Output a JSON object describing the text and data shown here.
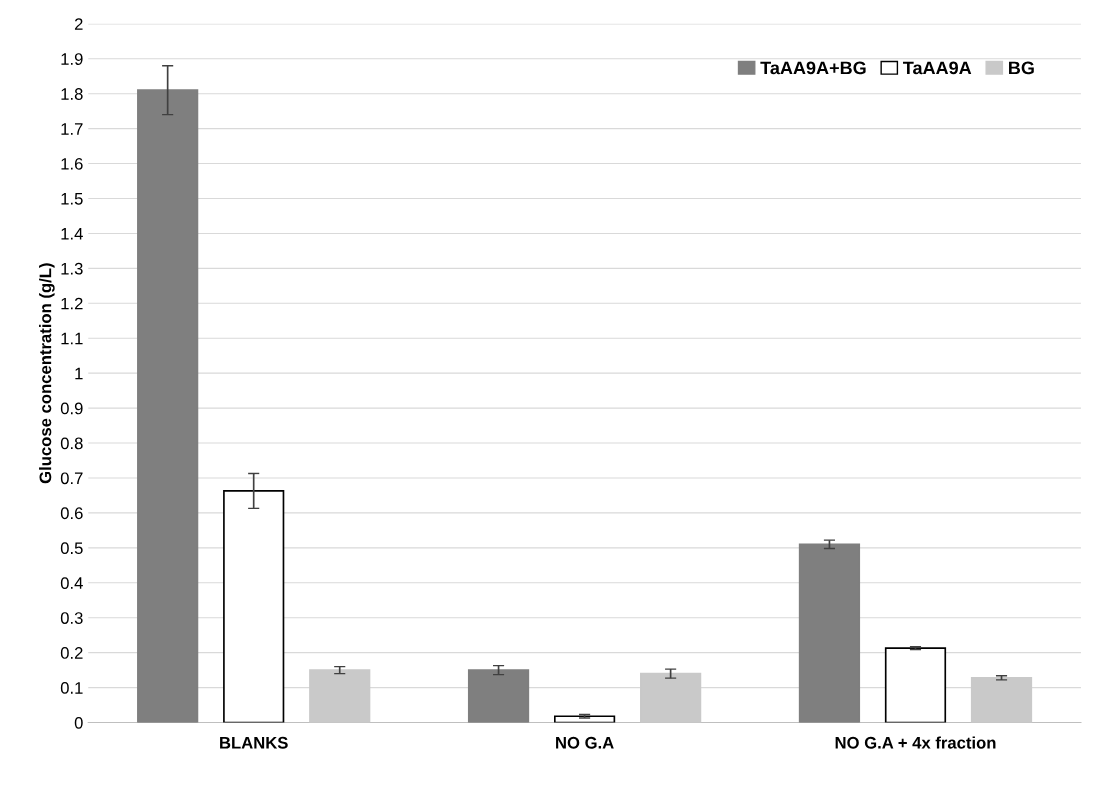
{
  "chart_data": {
    "type": "bar",
    "ylabel": "Glucose concentration (g/L)",
    "categories": [
      "BLANKS",
      "NO G.A",
      "NO G.A + 4x fraction"
    ],
    "series": [
      {
        "name": "TaAA9A+BG",
        "color": "#7f7f7f",
        "values": [
          1.81,
          0.15,
          0.51
        ],
        "errors": [
          0.07,
          0.013,
          0.012
        ]
      },
      {
        "name": "TaAA9A",
        "color": "#ffffff",
        "values": [
          0.663,
          0.018,
          0.213
        ],
        "errors": [
          0.05,
          0.005,
          0.004
        ]
      },
      {
        "name": "BG",
        "color": "#c9c9c9",
        "values": [
          0.15,
          0.14,
          0.128
        ],
        "errors": [
          0.01,
          0.013,
          0.006
        ]
      }
    ],
    "ylim": [
      0,
      2
    ],
    "yticks": [
      0,
      0.1,
      0.2,
      0.3,
      0.4,
      0.5,
      0.6,
      0.7,
      0.8,
      0.9,
      1,
      1.1,
      1.2,
      1.3,
      1.4,
      1.5,
      1.6,
      1.7,
      1.8,
      1.9,
      2
    ],
    "grid": "y",
    "legend": "top right"
  }
}
